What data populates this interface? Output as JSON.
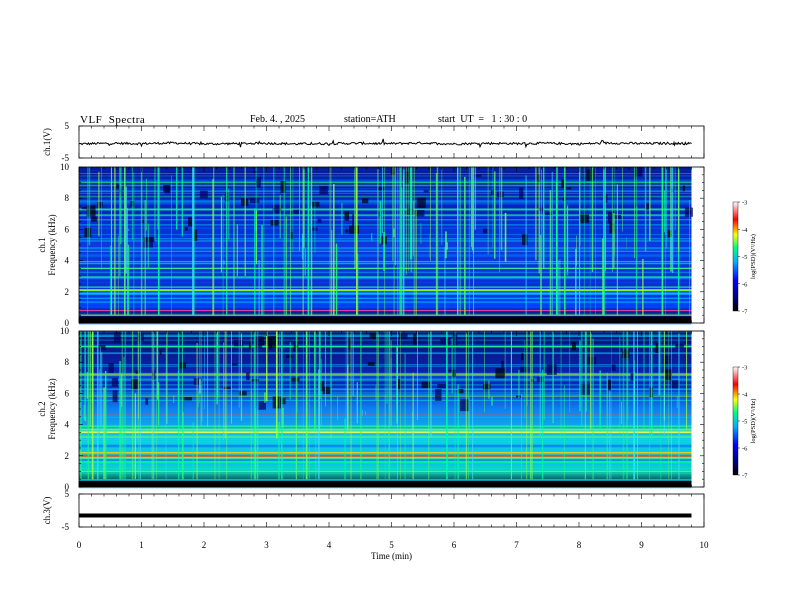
{
  "header": {
    "title": "VLF  Spectra",
    "date": "Feb. 4. , 2025",
    "station": "station=ATH",
    "start_ut": "start  UT  =   1 : 30 : 0"
  },
  "colors": {
    "waveform": "#000000",
    "background": "#ffffff",
    "colormap": [
      "#000000",
      "#000080",
      "#0000ff",
      "#00b0ff",
      "#00ff80",
      "#ffff00",
      "#ff0000",
      "#ffffff"
    ]
  },
  "chart_data": [
    {
      "type": "line",
      "panel": "ch1-waveform",
      "ylabel": "ch.1(V)",
      "ylim": [
        -5,
        5
      ],
      "yticks": [
        "5",
        "-5"
      ],
      "xlim": [
        0,
        10
      ],
      "x": [
        0,
        0.5,
        1,
        1.5,
        2,
        2.5,
        3,
        3.5,
        4,
        4.5,
        5,
        5.5,
        6,
        6.5,
        7,
        7.5,
        8,
        8.5,
        9,
        9.5,
        9.8
      ],
      "y": [
        -0.6,
        -0.4,
        -0.5,
        -0.3,
        -0.6,
        -0.5,
        -0.4,
        -0.6,
        -0.5,
        -0.4,
        -0.5,
        -0.3,
        -0.6,
        -0.4,
        -0.5,
        -0.4,
        -0.6,
        -0.3,
        -0.5,
        -0.4,
        -0.5
      ]
    },
    {
      "type": "heatmap",
      "panel": "ch1-spectrogram",
      "ylabel": "ch.1\nFrequency (kHz)",
      "ylim": [
        0,
        10
      ],
      "yticks": [
        "0",
        "2",
        "4",
        "6",
        "8",
        "10"
      ],
      "xlim": [
        0,
        10
      ],
      "colorbar": {
        "label": "log(PSD)(V²/Hz)",
        "range": [
          -7,
          -3
        ],
        "ticks": [
          "-3",
          "-4",
          "-5",
          "-6",
          "-7"
        ]
      }
    },
    {
      "type": "heatmap",
      "panel": "ch2-spectrogram",
      "ylabel": "ch.2\nFrequency (kHz)",
      "ylim": [
        0,
        10
      ],
      "yticks": [
        "0",
        "2",
        "4",
        "6",
        "8",
        "10"
      ],
      "xlim": [
        0,
        10
      ],
      "colorbar": {
        "label": "log(PSD)(V²/Hz)",
        "range": [
          -7,
          -3
        ],
        "ticks": [
          "-3",
          "-4",
          "-5",
          "-6",
          "-7"
        ]
      }
    },
    {
      "type": "line",
      "panel": "ch3-waveform",
      "ylabel": "ch.3(V)",
      "ylim": [
        -5,
        5
      ],
      "yticks": [
        "5",
        "-5"
      ],
      "xlim": [
        0,
        10
      ],
      "x": [
        0,
        9.8
      ],
      "y": [
        -1.5,
        -1.5
      ]
    }
  ],
  "xaxis": {
    "label": "Time  (min)",
    "ticks": [
      "0",
      "1",
      "2",
      "3",
      "4",
      "5",
      "6",
      "7",
      "8",
      "9",
      "10"
    ]
  }
}
